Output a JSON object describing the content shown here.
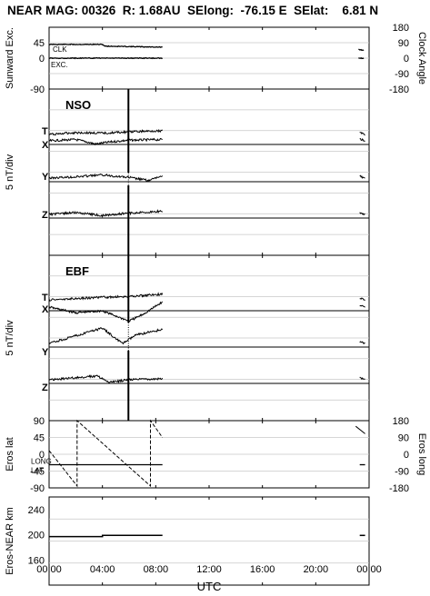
{
  "header": {
    "title": "NEAR MAG: 00326  R: 1.68AU  SElong:  -76.15 E  SElat:    6.81 N"
  },
  "chart_data": [
    {
      "type": "line",
      "panel": "sunward-clock",
      "ylabel_left": "Sunward Exc.",
      "ylabel_right": "Clock Angle",
      "yticks_left": [
        "45",
        "0",
        "-90"
      ],
      "yticks_right": [
        "180",
        "90",
        "0",
        "-90",
        "-180"
      ],
      "ylim_left": [
        -90,
        90
      ],
      "ylim_right": [
        -180,
        180
      ],
      "curve_labels": [
        "CLK",
        "EXC."
      ],
      "series": [
        {
          "name": "CLK",
          "x": [
            0.0,
            4.0,
            4.2,
            8.5
          ],
          "values": [
            40,
            40,
            35,
            32
          ]
        },
        {
          "name": "EXC.",
          "x": [
            0.0,
            8.5
          ],
          "values": [
            0,
            0
          ]
        },
        {
          "name": "CLK",
          "x": [
            23.2,
            23.6
          ],
          "values": [
            26,
            22
          ]
        },
        {
          "name": "EXC.",
          "x": [
            23.2,
            23.6
          ],
          "values": [
            0,
            0
          ]
        }
      ]
    },
    {
      "type": "line",
      "panel": "NSO",
      "title": "NSO",
      "ylabel_left": "5 nT/div",
      "component_labels": [
        "T",
        "X",
        "Y",
        "Z"
      ],
      "marker_time": 5.95,
      "series": [
        {
          "name": "T",
          "x": [
            0.0,
            2.0,
            4.0,
            6.0,
            8.5
          ],
          "values": [
            0.0,
            0.3,
            0.2,
            0.4,
            0.6
          ]
        },
        {
          "name": "X",
          "x": [
            0.0,
            2.0,
            3.5,
            4.5,
            6.0,
            8.5
          ],
          "values": [
            0.0,
            0.2,
            -0.5,
            -0.2,
            0.1,
            0.2
          ]
        },
        {
          "name": "Y",
          "x": [
            0.0,
            2.0,
            4.0,
            6.0,
            7.5,
            8.5
          ],
          "values": [
            0.0,
            0.2,
            0.5,
            0.1,
            -0.4,
            0.4
          ]
        },
        {
          "name": "Z",
          "x": [
            0.0,
            2.0,
            4.0,
            6.0,
            8.5
          ],
          "values": [
            0.0,
            0.3,
            -0.2,
            0.2,
            0.5
          ]
        }
      ]
    },
    {
      "type": "line",
      "panel": "EBF",
      "title": "EBF",
      "ylabel_left": "5 nT/div",
      "component_labels": [
        "T",
        "X",
        "Y",
        "Z"
      ],
      "marker_time": 5.95,
      "series": [
        {
          "name": "T",
          "x": [
            0.0,
            2.0,
            4.0,
            6.0,
            8.5
          ],
          "values": [
            0.0,
            0.2,
            0.4,
            0.5,
            0.9
          ]
        },
        {
          "name": "X",
          "x": [
            0.0,
            2.0,
            4.0,
            6.0,
            7.0,
            8.5
          ],
          "values": [
            0.0,
            -0.9,
            -0.6,
            -2.2,
            -1.2,
            0.8
          ]
        },
        {
          "name": "Y",
          "x": [
            0.0,
            2.0,
            4.0,
            5.5,
            6.5,
            8.5
          ],
          "values": [
            0.0,
            1.2,
            2.4,
            0.0,
            1.3,
            2.2
          ]
        },
        {
          "name": "Z",
          "x": [
            0.0,
            2.0,
            3.6,
            4.5,
            6.0,
            8.5
          ],
          "values": [
            0.0,
            0.3,
            0.6,
            -0.4,
            0.0,
            0.2
          ]
        }
      ]
    },
    {
      "type": "line",
      "panel": "eros-lat-long",
      "ylabel_left": "Eros lat",
      "ylabel_right": "Eros long",
      "yticks_left": [
        "90",
        "45",
        "0",
        "-45",
        "-90"
      ],
      "yticks_right": [
        "180",
        "90",
        "0",
        "-90",
        "-180"
      ],
      "ylim_left": [
        -90,
        90
      ],
      "ylim_right": [
        -180,
        180
      ],
      "curve_labels": [
        "LONG",
        "LAT"
      ],
      "series": [
        {
          "name": "LAT",
          "x": [
            0.0,
            8.5
          ],
          "values": [
            -28,
            -28
          ]
        },
        {
          "name": "LONG",
          "x": [
            0.0,
            2.1,
            2.1,
            7.6,
            7.6,
            8.5
          ],
          "values": [
            20,
            -170,
            180,
            -170,
            180,
            90
          ]
        },
        {
          "name": "LAT",
          "x": [
            23.3,
            23.7
          ],
          "values": [
            -28,
            -28
          ]
        },
        {
          "name": "LONG",
          "x": [
            23.0,
            23.7
          ],
          "values": [
            150,
            110
          ]
        }
      ]
    },
    {
      "type": "line",
      "panel": "eros-near-km",
      "ylabel_left": "Eros-NEAR km",
      "yticks_left": [
        "240",
        "200",
        "160"
      ],
      "ylim_left": [
        120,
        260
      ],
      "series": [
        {
          "name": "Eros-NEAR km",
          "x": [
            0.0,
            4.0,
            4.0,
            8.5
          ],
          "values": [
            197,
            197,
            199,
            199
          ]
        },
        {
          "name": "Eros-NEAR km",
          "x": [
            23.3,
            23.7
          ],
          "values": [
            199,
            199
          ]
        }
      ]
    }
  ],
  "xaxis": {
    "label": "UTC",
    "tick_labels": [
      "00:00",
      "04:00",
      "08:00",
      "12:00",
      "16:00",
      "20:00",
      "00:00"
    ],
    "xlim": [
      0,
      24
    ]
  }
}
